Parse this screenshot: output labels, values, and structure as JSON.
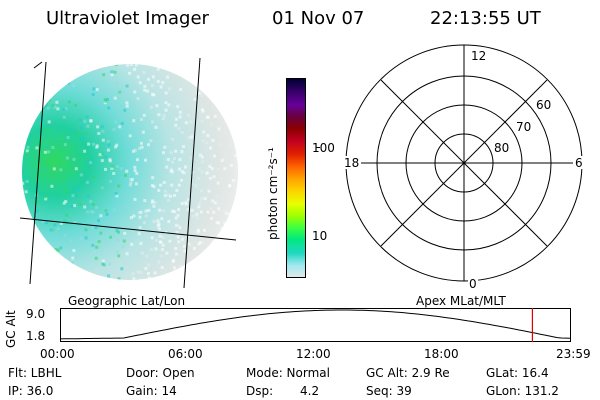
{
  "header": {
    "instrument": "Ultraviolet Imager",
    "date": "01 Nov 07",
    "time": "22:13:55 UT"
  },
  "colorbar": {
    "unit_label": "photon cm⁻²s⁻¹",
    "ticks": [
      "100",
      "10"
    ],
    "colors": [
      "#000033",
      "#330066",
      "#660099",
      "#6a0040",
      "#8b0000",
      "#c00020",
      "#e02000",
      "#ff6000",
      "#ffa000",
      "#ffd000",
      "#e8ff00",
      "#a0ff00",
      "#40ff40",
      "#00e880",
      "#20d8c0",
      "#a0e8f0",
      "#e0e8e8"
    ]
  },
  "polar": {
    "lat_labels": [
      "60",
      "70",
      "80"
    ],
    "mlt_labels": {
      "top": "12",
      "left": "18",
      "right": "6",
      "bottom": "0"
    }
  },
  "timeline": {
    "left_label": "Geographic Lat/Lon",
    "right_label": "Apex MLat/MLT",
    "axis_title": "GC Alt",
    "y_ticks": [
      "9.0",
      "1.8"
    ],
    "x_ticks": [
      "00:00",
      "06:00",
      "12:00",
      "18:00",
      "23:59"
    ],
    "marker_time_hours": 22.23,
    "marker_color": "#e00000"
  },
  "info": {
    "row1": {
      "filter": "Flt: LBHL",
      "door": "Door: Open",
      "mode": "Mode: Normal",
      "gc_alt": "GC Alt: 2.9 Re",
      "glat": "GLat: 16.4"
    },
    "row2": {
      "ip": "IP: 36.0",
      "gain": "Gain: 14",
      "dsp_label": "Dsp:",
      "dsp_value": "4.2",
      "seq": "Seq: 39",
      "glon": "GLon: 131.2"
    }
  }
}
